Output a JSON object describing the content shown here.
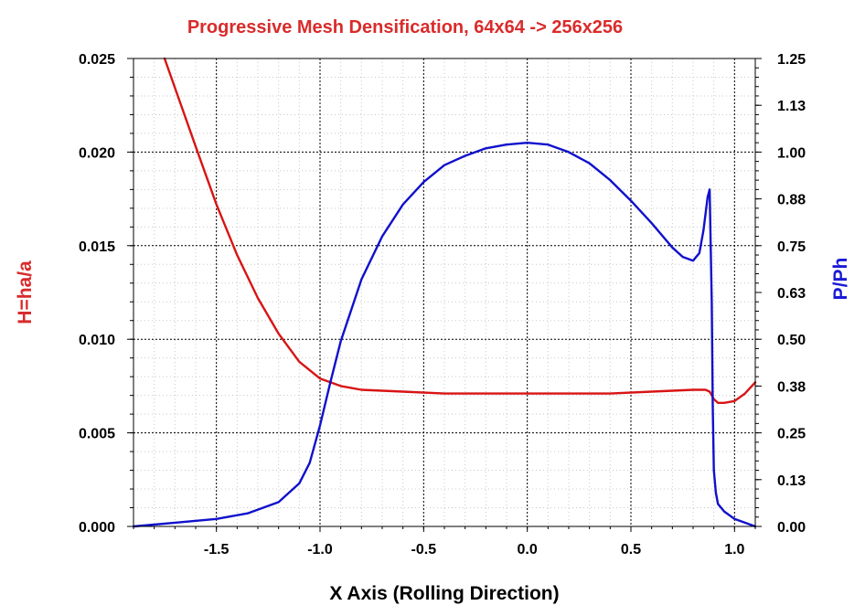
{
  "chart_data": {
    "type": "line",
    "title": "Progressive Mesh Densification, 64x64 -> 256x256",
    "xlabel": "X Axis (Rolling Direction)",
    "ylabel_left": "H=ha/a",
    "ylabel_right": "P/Ph",
    "xlim": [
      -1.9,
      1.1
    ],
    "ylim_left": [
      0.0,
      0.025
    ],
    "ylim_right": [
      0.0,
      1.25
    ],
    "x_ticks": [
      "-1.5",
      "-1.0",
      "-0.5",
      "0.0",
      "0.5",
      "1.0"
    ],
    "x_tick_values": [
      -1.5,
      -1.0,
      -0.5,
      0.0,
      0.5,
      1.0
    ],
    "y_left_ticks": [
      "0.000",
      "0.005",
      "0.010",
      "0.015",
      "0.020",
      "0.025"
    ],
    "y_left_tick_values": [
      0.0,
      0.005,
      0.01,
      0.015,
      0.02,
      0.025
    ],
    "y_right_ticks": [
      "0.00",
      "0.13",
      "0.25",
      "0.38",
      "0.50",
      "0.63",
      "0.75",
      "0.88",
      "1.00",
      "1.13",
      "1.25"
    ],
    "y_right_tick_values": [
      0.0,
      0.125,
      0.25,
      0.375,
      0.5,
      0.625,
      0.75,
      0.875,
      1.0,
      1.125,
      1.25
    ],
    "grid": true,
    "colors": {
      "title": "#d92b2b",
      "left_axis": "#d92b2b",
      "right_axis": "#1a1ad6",
      "series_h": "#d81414",
      "series_p": "#1010cc",
      "grid": "#000000"
    },
    "series": [
      {
        "axis": "left",
        "x": [
          -1.75,
          -1.6,
          -1.5,
          -1.4,
          -1.3,
          -1.2,
          -1.1,
          -1.0,
          -0.95,
          -0.9,
          -0.8,
          -0.6,
          -0.4,
          -0.2,
          0.0,
          0.2,
          0.4,
          0.6,
          0.8,
          0.86,
          0.88,
          0.9,
          0.92,
          0.95,
          1.0,
          1.05,
          1.1
        ],
        "values": [
          0.025,
          0.0203,
          0.0172,
          0.0145,
          0.0122,
          0.0103,
          0.0088,
          0.0079,
          0.0077,
          0.0075,
          0.0073,
          0.0072,
          0.0071,
          0.0071,
          0.0071,
          0.0071,
          0.0071,
          0.0072,
          0.0073,
          0.0073,
          0.0072,
          0.0068,
          0.0066,
          0.0066,
          0.0067,
          0.0071,
          0.0077
        ]
      },
      {
        "axis": "right",
        "x": [
          -1.9,
          -1.7,
          -1.5,
          -1.35,
          -1.2,
          -1.1,
          -1.05,
          -1.0,
          -0.95,
          -0.9,
          -0.8,
          -0.7,
          -0.6,
          -0.5,
          -0.4,
          -0.3,
          -0.2,
          -0.1,
          0.0,
          0.1,
          0.2,
          0.3,
          0.4,
          0.5,
          0.6,
          0.7,
          0.75,
          0.8,
          0.83,
          0.85,
          0.87,
          0.88,
          0.89,
          0.895,
          0.9,
          0.91,
          0.92,
          0.95,
          1.0,
          1.05,
          1.1
        ],
        "values": [
          0.0,
          0.01,
          0.02,
          0.035,
          0.065,
          0.115,
          0.17,
          0.27,
          0.385,
          0.495,
          0.66,
          0.775,
          0.86,
          0.92,
          0.965,
          0.99,
          1.01,
          1.02,
          1.025,
          1.02,
          1.0,
          0.97,
          0.925,
          0.87,
          0.81,
          0.745,
          0.72,
          0.71,
          0.73,
          0.79,
          0.88,
          0.9,
          0.6,
          0.32,
          0.15,
          0.09,
          0.06,
          0.04,
          0.02,
          0.01,
          0.0
        ]
      }
    ]
  }
}
